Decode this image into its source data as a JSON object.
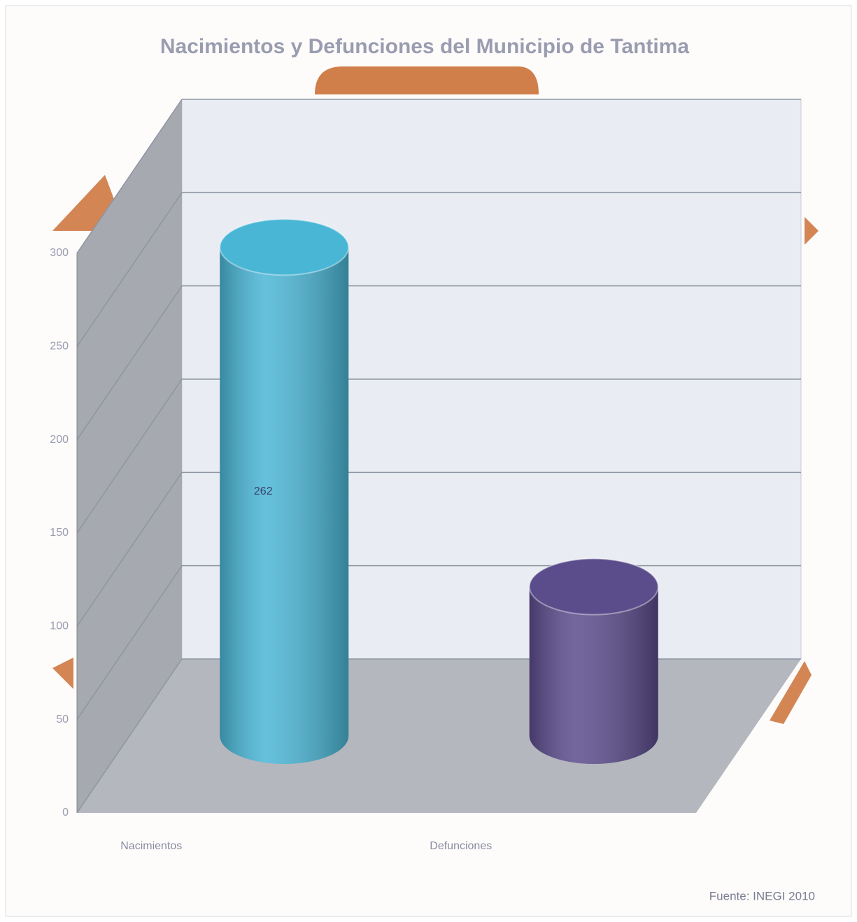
{
  "chart_data": {
    "type": "bar3d-cylinder",
    "title": "Nacimientos y Defunciones del Municipio de Tantima",
    "categories": [
      "Nacimientos",
      "Defunciones"
    ],
    "series": [
      {
        "name": "Nacimientos y Defunciones",
        "values": [
          262,
          80
        ]
      }
    ],
    "colors": [
      "#4ab6d6",
      "#5b4c8c"
    ],
    "value_labels": [
      "262",
      null
    ],
    "ylim": [
      0,
      300
    ],
    "yticks": [
      0,
      50,
      100,
      150,
      200,
      250,
      300
    ],
    "grid": true,
    "source": "Fuente: INEGI 2010"
  }
}
